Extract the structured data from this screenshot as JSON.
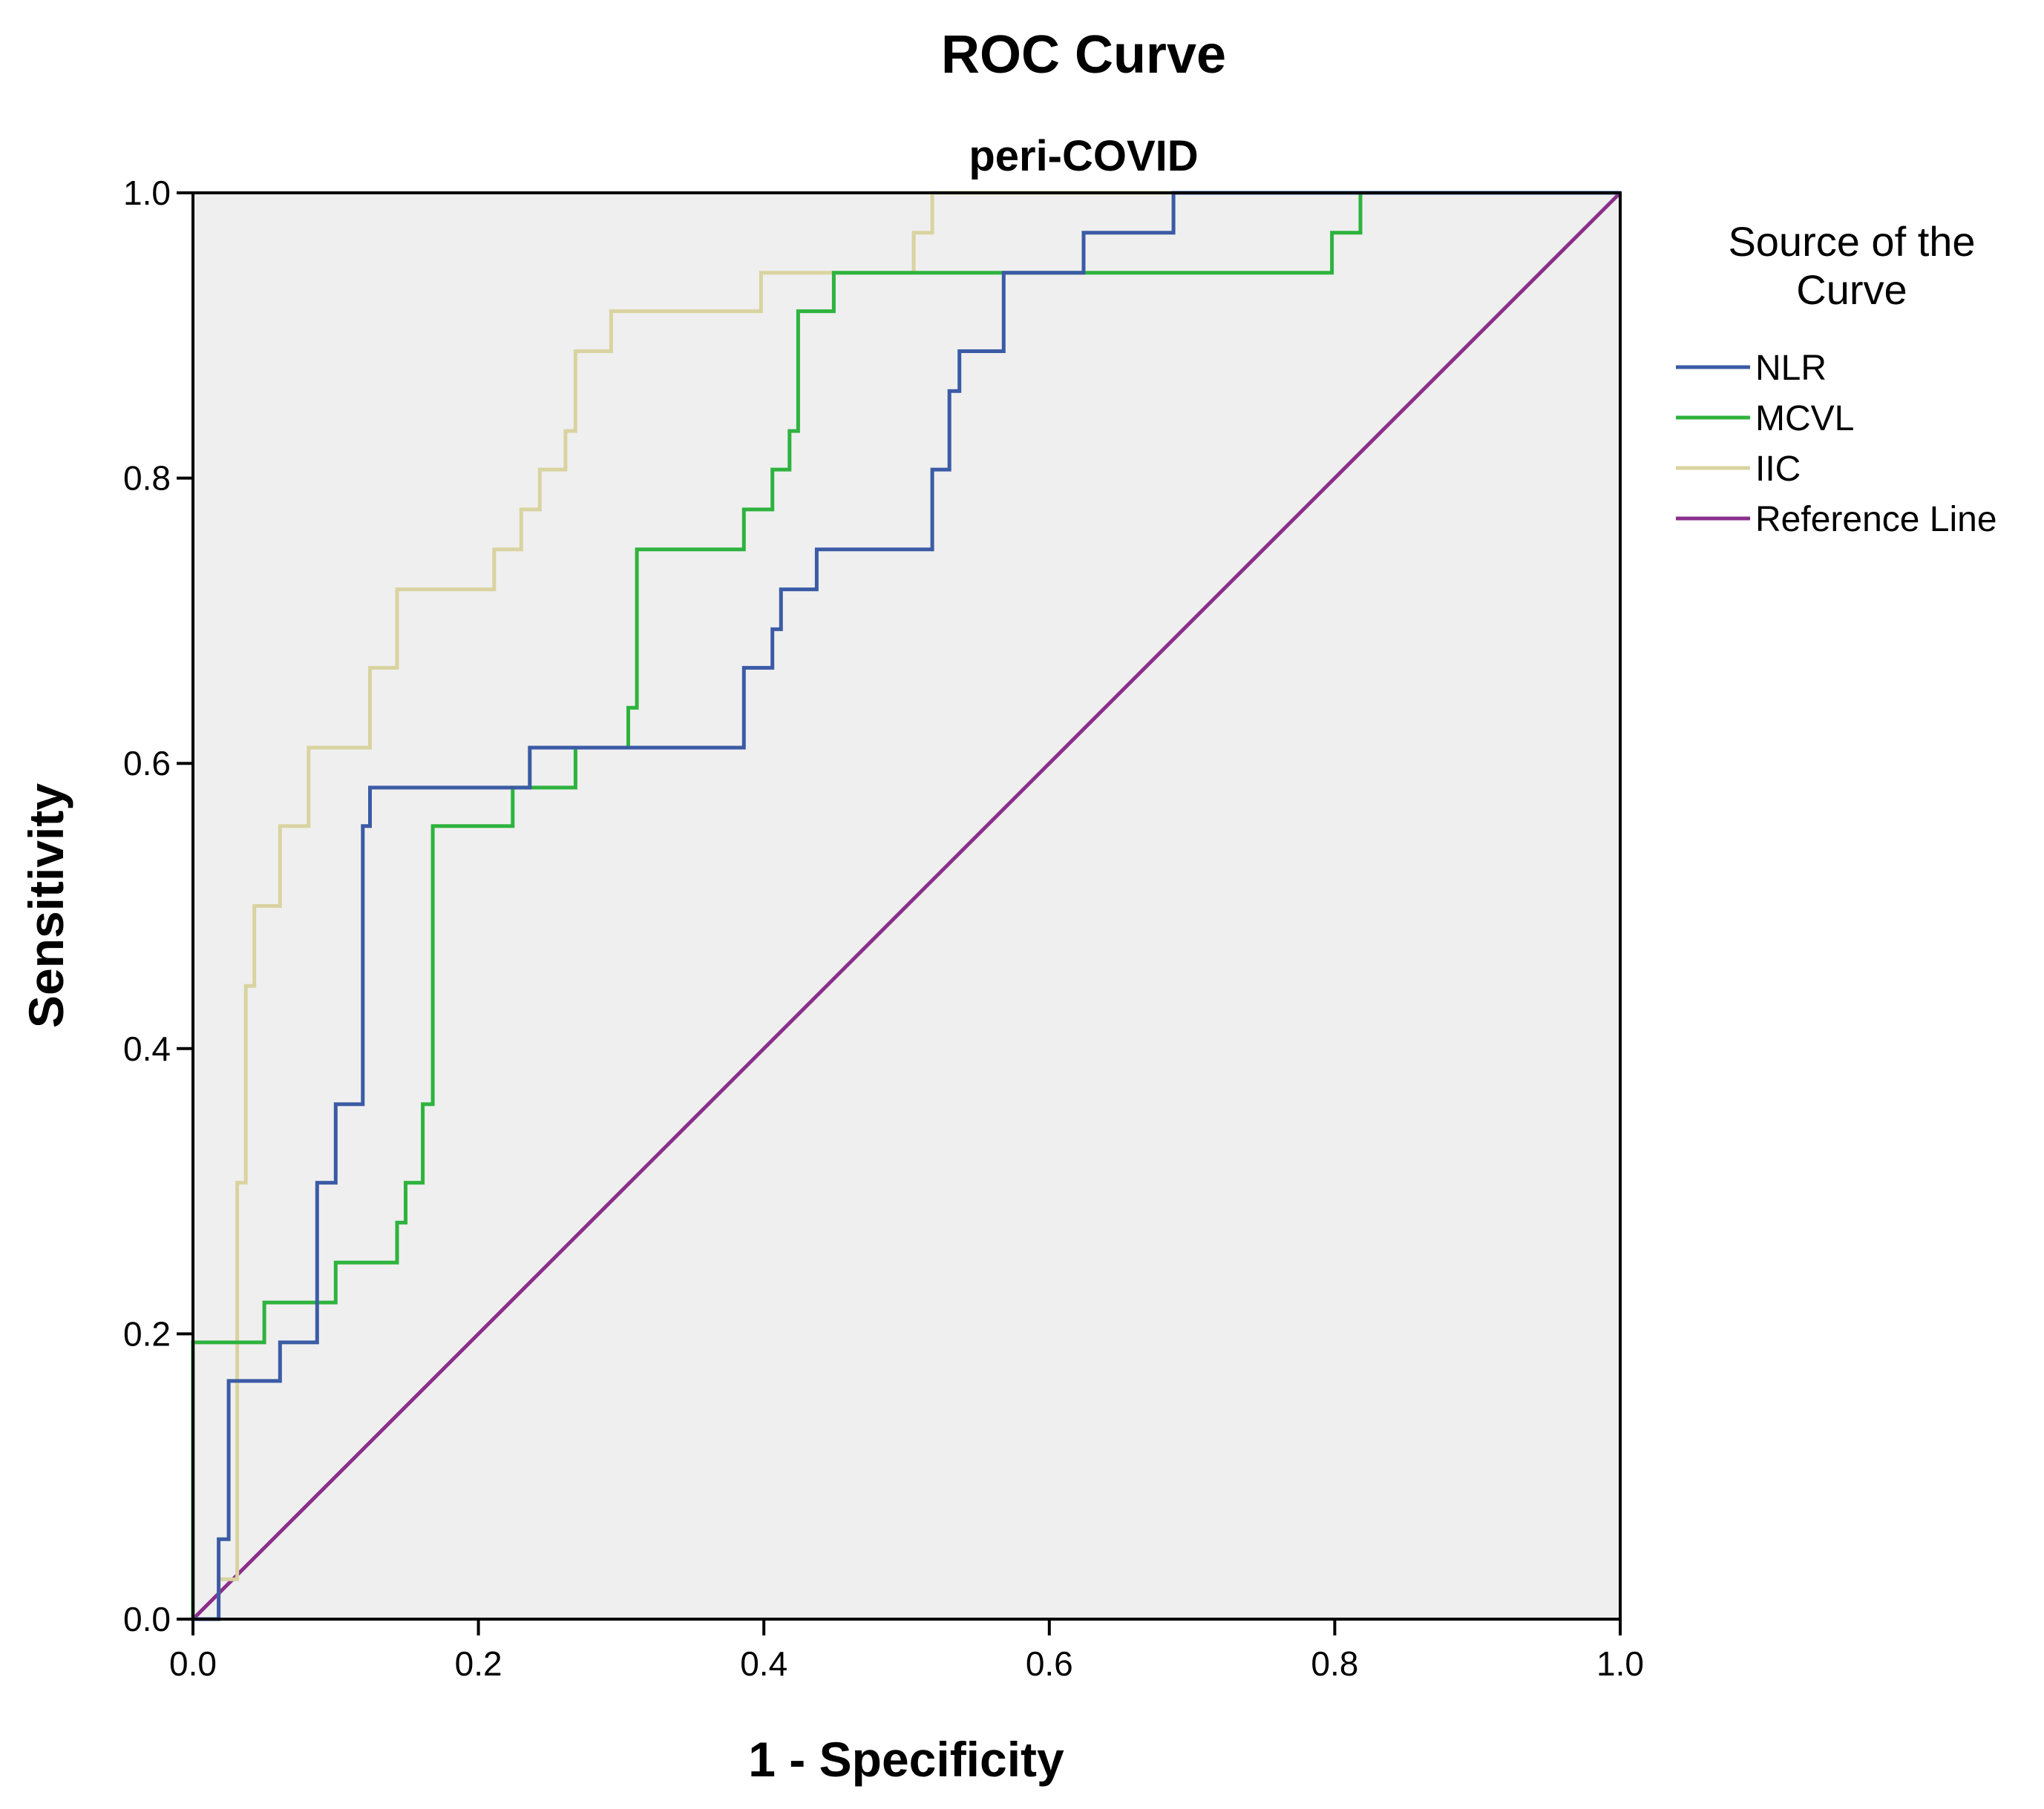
{
  "chart_data": {
    "type": "line",
    "title": "ROC Curve",
    "subtitle": "peri-COVID",
    "xlabel": "1 - Specificity",
    "ylabel": "Sensitivity",
    "xlim": [
      0,
      1
    ],
    "ylim": [
      0,
      1
    ],
    "xticks": [
      "0.0",
      "0.2",
      "0.4",
      "0.6",
      "0.8",
      "1.0"
    ],
    "yticks": [
      "0.0",
      "0.2",
      "0.4",
      "0.6",
      "0.8",
      "1.0"
    ],
    "grid": false,
    "background": "#efefef",
    "legend": {
      "title": "Source of the Curve",
      "title_lines": [
        "Source of the",
        "Curve"
      ],
      "position": "right"
    },
    "series": [
      {
        "name": "NLR",
        "color": "#3b5ba5",
        "points": [
          [
            0,
            0
          ],
          [
            0.018,
            0
          ],
          [
            0.018,
            0.056
          ],
          [
            0.025,
            0.056
          ],
          [
            0.025,
            0.167
          ],
          [
            0.061,
            0.167
          ],
          [
            0.061,
            0.194
          ],
          [
            0.087,
            0.194
          ],
          [
            0.087,
            0.306
          ],
          [
            0.1,
            0.306
          ],
          [
            0.1,
            0.361
          ],
          [
            0.119,
            0.361
          ],
          [
            0.119,
            0.556
          ],
          [
            0.124,
            0.556
          ],
          [
            0.124,
            0.583
          ],
          [
            0.236,
            0.583
          ],
          [
            0.236,
            0.611
          ],
          [
            0.386,
            0.611
          ],
          [
            0.386,
            0.667
          ],
          [
            0.406,
            0.667
          ],
          [
            0.406,
            0.694
          ],
          [
            0.412,
            0.694
          ],
          [
            0.412,
            0.722
          ],
          [
            0.437,
            0.722
          ],
          [
            0.437,
            0.75
          ],
          [
            0.518,
            0.75
          ],
          [
            0.518,
            0.806
          ],
          [
            0.53,
            0.806
          ],
          [
            0.53,
            0.861
          ],
          [
            0.537,
            0.861
          ],
          [
            0.537,
            0.889
          ],
          [
            0.568,
            0.889
          ],
          [
            0.568,
            0.944
          ],
          [
            0.624,
            0.944
          ],
          [
            0.624,
            0.972
          ],
          [
            0.687,
            0.972
          ],
          [
            0.687,
            1.0
          ],
          [
            1.0,
            1.0
          ]
        ]
      },
      {
        "name": "MCVL",
        "color": "#2eb33e",
        "points": [
          [
            0,
            0
          ],
          [
            0,
            0.194
          ],
          [
            0.05,
            0.194
          ],
          [
            0.05,
            0.222
          ],
          [
            0.1,
            0.222
          ],
          [
            0.1,
            0.25
          ],
          [
            0.143,
            0.25
          ],
          [
            0.143,
            0.278
          ],
          [
            0.149,
            0.278
          ],
          [
            0.149,
            0.306
          ],
          [
            0.161,
            0.306
          ],
          [
            0.161,
            0.361
          ],
          [
            0.168,
            0.361
          ],
          [
            0.168,
            0.556
          ],
          [
            0.224,
            0.556
          ],
          [
            0.224,
            0.583
          ],
          [
            0.268,
            0.583
          ],
          [
            0.268,
            0.611
          ],
          [
            0.305,
            0.611
          ],
          [
            0.305,
            0.639
          ],
          [
            0.311,
            0.639
          ],
          [
            0.311,
            0.75
          ],
          [
            0.386,
            0.75
          ],
          [
            0.386,
            0.778
          ],
          [
            0.406,
            0.778
          ],
          [
            0.406,
            0.806
          ],
          [
            0.418,
            0.806
          ],
          [
            0.418,
            0.833
          ],
          [
            0.424,
            0.833
          ],
          [
            0.424,
            0.917
          ],
          [
            0.449,
            0.917
          ],
          [
            0.449,
            0.944
          ],
          [
            0.798,
            0.944
          ],
          [
            0.798,
            0.972
          ],
          [
            0.818,
            0.972
          ],
          [
            0.818,
            1.0
          ],
          [
            1.0,
            1.0
          ]
        ]
      },
      {
        "name": "IIC",
        "color": "#d9d3a0",
        "points": [
          [
            0,
            0
          ],
          [
            0.018,
            0
          ],
          [
            0.018,
            0.028
          ],
          [
            0.031,
            0.028
          ],
          [
            0.031,
            0.306
          ],
          [
            0.037,
            0.306
          ],
          [
            0.037,
            0.444
          ],
          [
            0.043,
            0.444
          ],
          [
            0.043,
            0.5
          ],
          [
            0.061,
            0.5
          ],
          [
            0.061,
            0.556
          ],
          [
            0.081,
            0.556
          ],
          [
            0.081,
            0.611
          ],
          [
            0.124,
            0.611
          ],
          [
            0.124,
            0.667
          ],
          [
            0.143,
            0.667
          ],
          [
            0.143,
            0.722
          ],
          [
            0.211,
            0.722
          ],
          [
            0.211,
            0.75
          ],
          [
            0.23,
            0.75
          ],
          [
            0.23,
            0.778
          ],
          [
            0.243,
            0.778
          ],
          [
            0.243,
            0.806
          ],
          [
            0.261,
            0.806
          ],
          [
            0.261,
            0.833
          ],
          [
            0.268,
            0.833
          ],
          [
            0.268,
            0.889
          ],
          [
            0.293,
            0.889
          ],
          [
            0.293,
            0.917
          ],
          [
            0.398,
            0.917
          ],
          [
            0.398,
            0.944
          ],
          [
            0.505,
            0.944
          ],
          [
            0.505,
            0.972
          ],
          [
            0.518,
            0.972
          ],
          [
            0.518,
            1.0
          ],
          [
            1.0,
            1.0
          ]
        ]
      },
      {
        "name": "Reference Line",
        "color": "#8b2f8b",
        "points": [
          [
            0,
            0
          ],
          [
            1,
            1
          ]
        ]
      }
    ]
  }
}
